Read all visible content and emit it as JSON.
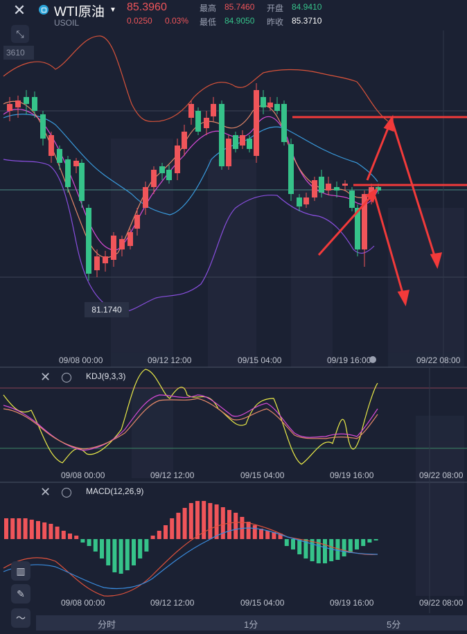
{
  "header": {
    "close_icon": "close-icon",
    "symbol_name": "WTI原油",
    "symbol_code": "USOIL",
    "price": "85.3960",
    "change": "0.0250",
    "change_pct": "0.03%",
    "high_label": "最高",
    "high": "85.7460",
    "open_label": "开盘",
    "open": "84.9410",
    "low_label": "最低",
    "low": "84.9050",
    "prev_label": "昨收",
    "prev_close": "85.3710"
  },
  "main_chart": {
    "top_price_tag": "3610",
    "low_marker": "81.1740",
    "time_labels": [
      "09/08 00:00",
      "09/12 12:00",
      "09/15 04:00",
      "09/19 16:00",
      "09/22 08:00"
    ]
  },
  "kdj": {
    "label": "KDJ(9,3,3)",
    "time_labels": [
      "09/08 00:00",
      "09/12 12:00",
      "09/15 04:00",
      "09/19 16:00",
      "09/22 08:00"
    ]
  },
  "macd": {
    "label": "MACD(12,26,9)",
    "time_labels": [
      "09/08 00:00",
      "09/12 12:00",
      "09/15 04:00",
      "09/19 16:00",
      "09/22 08:00"
    ]
  },
  "timeframes": {
    "t1": "分时",
    "t2": "1分",
    "t3": "5分"
  },
  "colors": {
    "up": "#f0555a",
    "down": "#36c38a",
    "background": "#1b2133",
    "arrow": "#f23a3a"
  }
}
